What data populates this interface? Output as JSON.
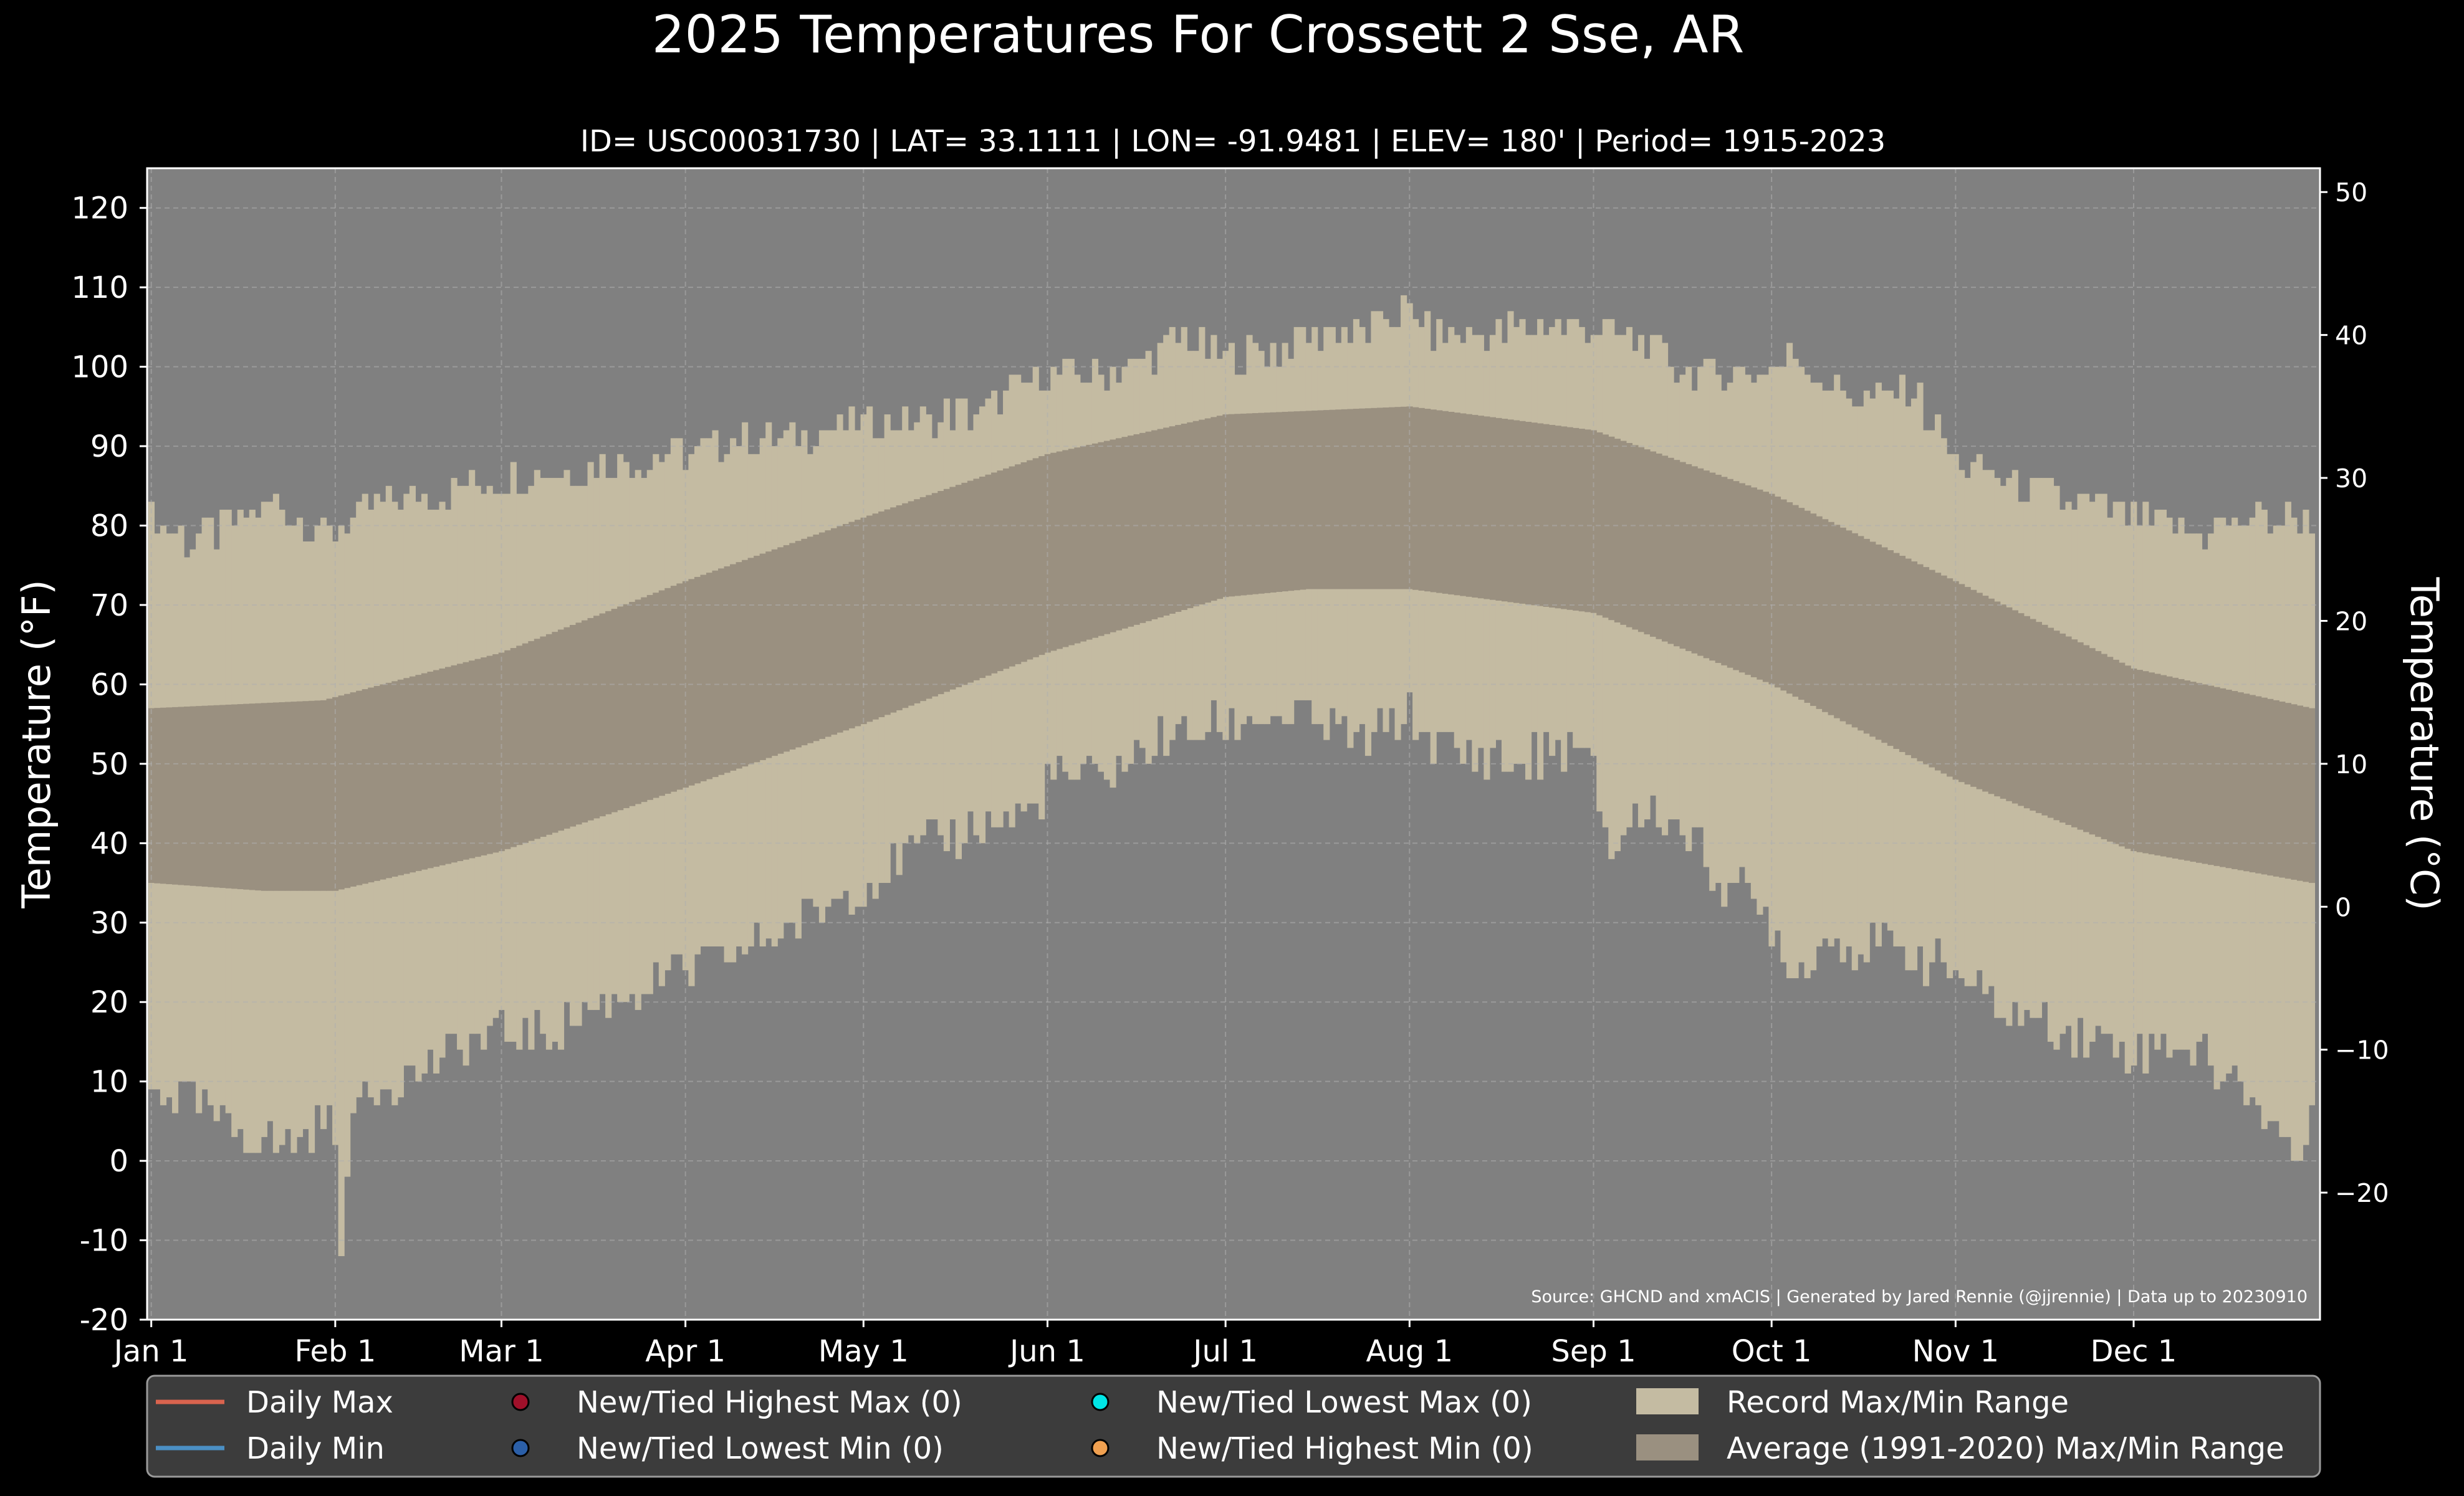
{
  "chart_data": {
    "type": "area",
    "title": "2025 Temperatures For Crossett 2 Sse, AR",
    "subtitle": "ID= USC00031730 | LAT= 33.1111 | LON= -91.9481 | ELEV= 180' | Period= 1915-2023",
    "ylabel_left": "Temperature ($^\\circ$F)",
    "ylabel_left_display": "Temperature (°F)",
    "ylabel_right_display": "Temperature (°C)",
    "source_note": "Source: GHCND and xmACIS | Generated by Jared Rennie (@jjrennie) | Data up to 20230910",
    "ylim_f": [
      -20,
      125
    ],
    "ylim_c": [
      -28.9,
      51.7
    ],
    "yticks_f": [
      "-20",
      "-10",
      "0",
      "10",
      "20",
      "30",
      "40",
      "50",
      "60",
      "70",
      "80",
      "90",
      "100",
      "110",
      "120"
    ],
    "yticks_c": [
      "−20",
      "−10",
      "0",
      "10",
      "20",
      "30",
      "40",
      "50"
    ],
    "xticks": [
      {
        "label": "Jan 1",
        "day": 1
      },
      {
        "label": "Feb 1",
        "day": 32
      },
      {
        "label": "Mar 1",
        "day": 60
      },
      {
        "label": "Apr 1",
        "day": 91
      },
      {
        "label": "May 1",
        "day": 121
      },
      {
        "label": "Jun 1",
        "day": 152
      },
      {
        "label": "Jul 1",
        "day": 182
      },
      {
        "label": "Aug 1",
        "day": 213
      },
      {
        "label": "Sep 1",
        "day": 244
      },
      {
        "label": "Oct 1",
        "day": 274
      },
      {
        "label": "Nov 1",
        "day": 305
      },
      {
        "label": "Dec 1",
        "day": 335
      }
    ],
    "grid": true,
    "legend_position": "bottom",
    "series": [
      {
        "name": "Record Max/Min Range",
        "color": "#c4bba2",
        "record_max_keypoints": [
          [
            1,
            81
          ],
          [
            7,
            78
          ],
          [
            15,
            80
          ],
          [
            22,
            83
          ],
          [
            27,
            80
          ],
          [
            32,
            79
          ],
          [
            40,
            83
          ],
          [
            50,
            84
          ],
          [
            60,
            86
          ],
          [
            70,
            87
          ],
          [
            80,
            88
          ],
          [
            91,
            89
          ],
          [
            100,
            91
          ],
          [
            110,
            91
          ],
          [
            121,
            93
          ],
          [
            130,
            93
          ],
          [
            140,
            94
          ],
          [
            152,
            99
          ],
          [
            160,
            99
          ],
          [
            170,
            101
          ],
          [
            175,
            104
          ],
          [
            182,
            101
          ],
          [
            190,
            102
          ],
          [
            200,
            105
          ],
          [
            205,
            104
          ],
          [
            213,
            107
          ],
          [
            217,
            104
          ],
          [
            225,
            104
          ],
          [
            235,
            105
          ],
          [
            244,
            105
          ],
          [
            252,
            103
          ],
          [
            260,
            99
          ],
          [
            270,
            99
          ],
          [
            279,
            101
          ],
          [
            285,
            97
          ],
          [
            290,
            96
          ],
          [
            298,
            97
          ],
          [
            305,
            88
          ],
          [
            315,
            85
          ],
          [
            325,
            83
          ],
          [
            335,
            81
          ],
          [
            345,
            79
          ],
          [
            355,
            81
          ],
          [
            365,
            81
          ]
        ],
        "record_min_keypoints": [
          [
            1,
            9
          ],
          [
            7,
            8
          ],
          [
            12,
            5
          ],
          [
            18,
            3
          ],
          [
            25,
            2
          ],
          [
            30,
            5
          ],
          [
            32,
            5
          ],
          [
            33,
            -9
          ],
          [
            36,
            9
          ],
          [
            45,
            11
          ],
          [
            55,
            15
          ],
          [
            60,
            16
          ],
          [
            68,
            16
          ],
          [
            75,
            19
          ],
          [
            85,
            22
          ],
          [
            91,
            24
          ],
          [
            100,
            26
          ],
          [
            105,
            28
          ],
          [
            110,
            30
          ],
          [
            121,
            35
          ],
          [
            130,
            39
          ],
          [
            140,
            42
          ],
          [
            150,
            44
          ],
          [
            152,
            48
          ],
          [
            160,
            48
          ],
          [
            165,
            50
          ],
          [
            172,
            53
          ],
          [
            182,
            55
          ],
          [
            190,
            56
          ],
          [
            200,
            55
          ],
          [
            205,
            52
          ],
          [
            213,
            56
          ],
          [
            218,
            52
          ],
          [
            225,
            51
          ],
          [
            232,
            50
          ],
          [
            240,
            52
          ],
          [
            244,
            49
          ],
          [
            247,
            38
          ],
          [
            250,
            43
          ],
          [
            255,
            44
          ],
          [
            260,
            41
          ],
          [
            265,
            36
          ],
          [
            270,
            33
          ],
          [
            275,
            29
          ],
          [
            278,
            23
          ],
          [
            283,
            28
          ],
          [
            290,
            27
          ],
          [
            297,
            26
          ],
          [
            305,
            24
          ],
          [
            312,
            19
          ],
          [
            320,
            17
          ],
          [
            328,
            16
          ],
          [
            335,
            14
          ],
          [
            342,
            15
          ],
          [
            348,
            12
          ],
          [
            355,
            8
          ],
          [
            360,
            3
          ],
          [
            362,
            0
          ],
          [
            365,
            4
          ]
        ]
      },
      {
        "name": "Average (1991-2020) Max/Min Range",
        "color": "#9a9080",
        "avg_max_keypoints": [
          [
            1,
            57
          ],
          [
            30,
            58
          ],
          [
            60,
            64
          ],
          [
            91,
            73
          ],
          [
            121,
            81
          ],
          [
            152,
            89
          ],
          [
            182,
            94
          ],
          [
            213,
            95
          ],
          [
            244,
            92
          ],
          [
            274,
            84
          ],
          [
            305,
            73
          ],
          [
            335,
            62
          ],
          [
            365,
            57
          ]
        ],
        "avg_min_keypoints": [
          [
            1,
            35
          ],
          [
            20,
            34
          ],
          [
            32,
            34
          ],
          [
            60,
            39
          ],
          [
            91,
            47
          ],
          [
            121,
            55
          ],
          [
            152,
            64
          ],
          [
            182,
            71
          ],
          [
            196,
            72
          ],
          [
            213,
            72
          ],
          [
            244,
            69
          ],
          [
            274,
            60
          ],
          [
            305,
            48
          ],
          [
            335,
            39
          ],
          [
            365,
            35
          ]
        ]
      },
      {
        "name": "Daily Max",
        "color": "#d9634e",
        "values": []
      },
      {
        "name": "Daily Min",
        "color": "#4b8fc4",
        "values": []
      }
    ],
    "legend": [
      {
        "label": "Daily Max",
        "kind": "line",
        "color": "#d9634e"
      },
      {
        "label": "Daily Min",
        "kind": "line",
        "color": "#4b8fc4"
      },
      {
        "label": "New/Tied Highest Max (0)",
        "kind": "marker",
        "color": "#a0102a"
      },
      {
        "label": "New/Tied Lowest Min (0)",
        "kind": "marker",
        "color": "#2b5fa8"
      },
      {
        "label": "New/Tied Lowest Max (0)",
        "kind": "marker",
        "color": "#00e5e5"
      },
      {
        "label": "New/Tied Highest Min (0)",
        "kind": "marker",
        "color": "#f0a050"
      },
      {
        "label": "Record Max/Min Range",
        "kind": "patch",
        "color": "#c4bba2"
      },
      {
        "label": "Average (1991-2020) Max/Min Range",
        "kind": "patch",
        "color": "#9a9080"
      }
    ],
    "colors": {
      "background": "#000000",
      "plot_background": "#808080",
      "grid": "#b0b0b0",
      "legend_background": "#3c3c3c"
    }
  }
}
